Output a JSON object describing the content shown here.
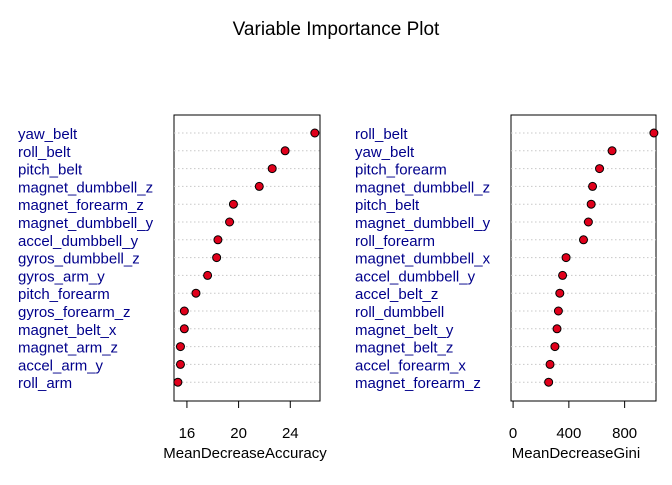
{
  "title": "Variable Importance Plot",
  "chart_data": [
    {
      "type": "dotchart",
      "xlabel": "MeanDecreaseAccuracy",
      "xlim": [
        15.0,
        26.3
      ],
      "xticks": [
        16,
        20,
        24
      ],
      "categories": [
        "yaw_belt",
        "roll_belt",
        "pitch_belt",
        "magnet_dumbbell_z",
        "magnet_forearm_z",
        "magnet_dumbbell_y",
        "accel_dumbbell_y",
        "gyros_dumbbell_z",
        "gyros_arm_y",
        "pitch_forearm",
        "gyros_forearm_z",
        "magnet_belt_x",
        "magnet_arm_z",
        "accel_arm_y",
        "roll_arm"
      ],
      "values": [
        25.9,
        23.6,
        22.6,
        21.6,
        19.6,
        19.3,
        18.4,
        18.3,
        17.6,
        16.7,
        15.8,
        15.8,
        15.5,
        15.5,
        15.3
      ],
      "point_fill": "#e0001b",
      "point_stroke": "#000000",
      "label_color": "#00008b",
      "grid": "dotted"
    },
    {
      "type": "dotchart",
      "xlabel": "MeanDecreaseGini",
      "xlim": [
        -15,
        1025
      ],
      "xticks": [
        0,
        400,
        800
      ],
      "categories": [
        "roll_belt",
        "yaw_belt",
        "pitch_forearm",
        "magnet_dumbbell_z",
        "pitch_belt",
        "magnet_dumbbell_y",
        "roll_forearm",
        "magnet_dumbbell_x",
        "accel_dumbbell_y",
        "accel_belt_z",
        "roll_dumbbell",
        "magnet_belt_y",
        "magnet_belt_z",
        "accel_forearm_x",
        "magnet_forearm_z"
      ],
      "values": [
        1010,
        710,
        620,
        570,
        560,
        540,
        505,
        380,
        355,
        335,
        325,
        315,
        300,
        265,
        255
      ],
      "point_fill": "#e0001b",
      "point_stroke": "#000000",
      "label_color": "#00008b",
      "grid": "dotted"
    }
  ]
}
